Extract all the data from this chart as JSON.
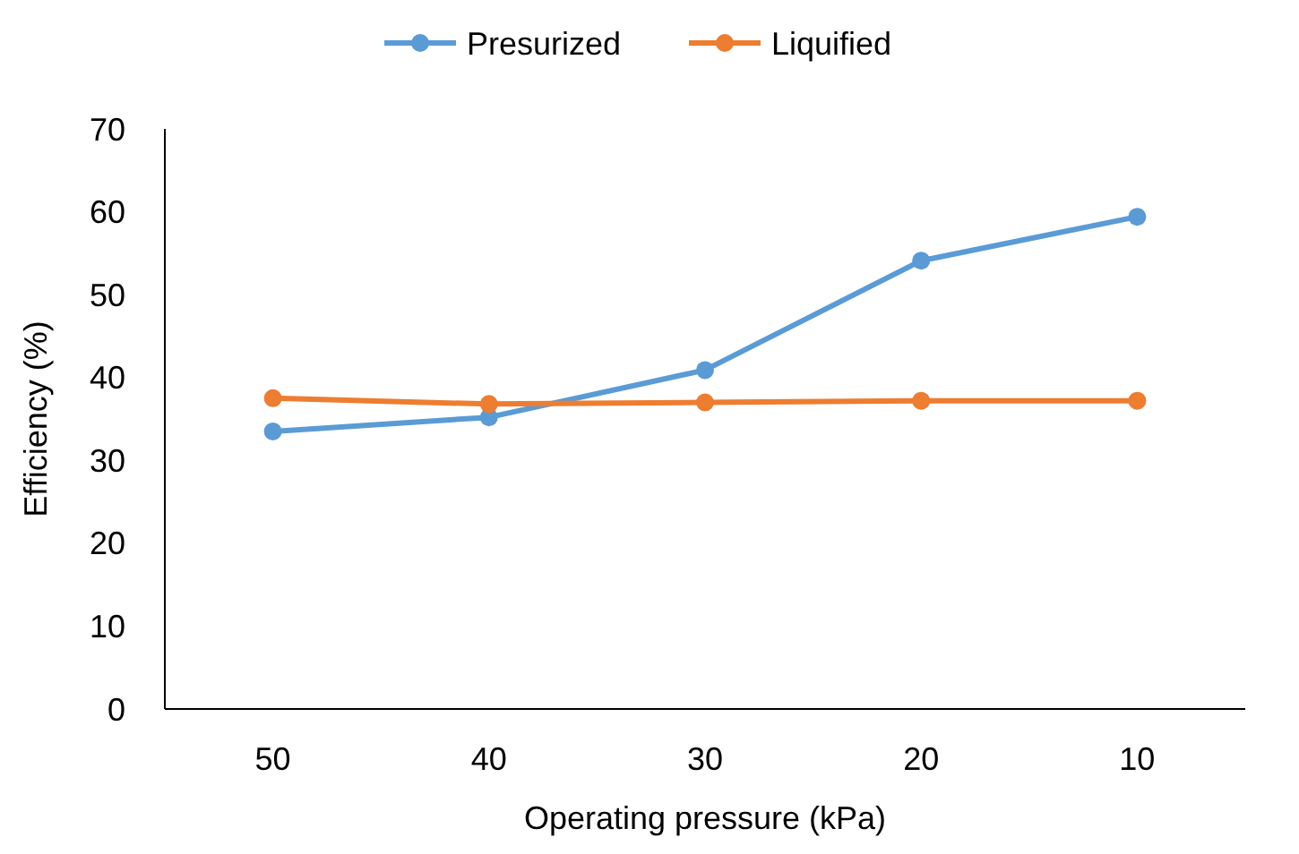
{
  "chart_data": {
    "type": "line",
    "xlabel": "Operating pressure (kPa)",
    "ylabel": "Efficiency (%)",
    "categories": [
      "50",
      "40",
      "30",
      "20",
      "10"
    ],
    "series": [
      {
        "name": "Presurized",
        "color": "#5b9bd5",
        "values": [
          33.5,
          35.2,
          40.9,
          54.1,
          59.4
        ]
      },
      {
        "name": "Liquified",
        "color": "#ed7d31",
        "values": [
          37.5,
          36.8,
          37.0,
          37.2,
          37.2
        ]
      }
    ],
    "ylim": [
      0,
      70
    ],
    "yticks": [
      0,
      10,
      20,
      30,
      40,
      50,
      60,
      70
    ],
    "grid": false,
    "legend": "top",
    "marker": "circle",
    "line_style": "solid"
  }
}
